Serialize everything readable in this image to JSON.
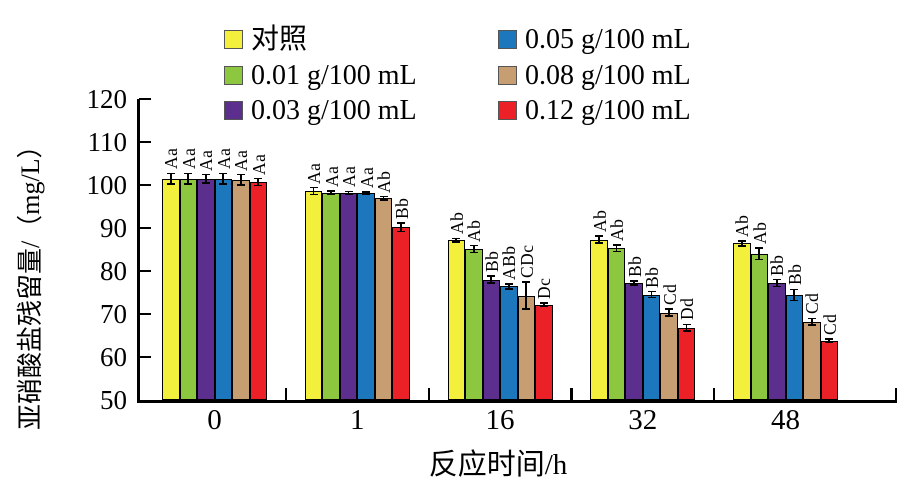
{
  "figure": {
    "background": "#ffffff"
  },
  "chart_data": {
    "type": "bar",
    "title": "",
    "xlabel": "反应时间/h",
    "ylabel": "亚硝酸盐残留量/（mg/L）",
    "categories": [
      "0",
      "1",
      "16",
      "32",
      "48"
    ],
    "y_ticks": [
      50,
      60,
      70,
      80,
      90,
      100,
      110,
      120
    ],
    "ylim": [
      50,
      120
    ],
    "grid": false,
    "legend_position": "top",
    "legend_columns": [
      [
        0,
        1,
        2
      ],
      [
        3,
        4,
        5
      ]
    ],
    "series": [
      {
        "name": "对照",
        "color": "#f3ef3d",
        "values": [
          101.5,
          98.6,
          87.2,
          87.3,
          86.4
        ],
        "errors": [
          1.2,
          0.8,
          0.4,
          0.8,
          0.6
        ],
        "labels": [
          "Aa",
          "Aa",
          "Ab",
          "Ab",
          "Ab"
        ]
      },
      {
        "name": "0.01 g/100 mL",
        "color": "#8dc63f",
        "values": [
          101.5,
          98.2,
          85.1,
          85.3,
          84.0
        ],
        "errors": [
          1.2,
          0.4,
          0.8,
          0.8,
          1.3
        ],
        "labels": [
          "Aa",
          "Aa",
          "Ab",
          "Ab",
          "Ab"
        ]
      },
      {
        "name": "0.03 g/100 mL",
        "color": "#5c2f8f",
        "values": [
          101.4,
          98.2,
          78.0,
          77.2,
          77.2
        ],
        "errors": [
          1.0,
          0.3,
          0.8,
          0.5,
          0.8
        ],
        "labels": [
          "Aa",
          "Aa",
          "Bb",
          "Bb",
          "Bb"
        ]
      },
      {
        "name": "0.05 g/100 mL",
        "color": "#1d77bd",
        "values": [
          101.5,
          98.1,
          76.4,
          74.5,
          74.4
        ],
        "errors": [
          1.2,
          0.3,
          0.6,
          0.7,
          1.3
        ],
        "labels": [
          "Aa",
          "Aa",
          "ABb",
          "Bb",
          "Bb"
        ]
      },
      {
        "name": "0.08 g/100 mL",
        "color": "#c79d72",
        "values": [
          101.2,
          96.9,
          74.3,
          70.3,
          68.2
        ],
        "errors": [
          1.2,
          0.4,
          3.2,
          0.8,
          0.8
        ],
        "labels": [
          "Aa",
          "Ab",
          "CDc",
          "Cd",
          "Cd"
        ]
      },
      {
        "name": "0.12 g/100 mL",
        "color": "#ec2027",
        "values": [
          100.7,
          90.2,
          72.2,
          66.8,
          63.8
        ],
        "errors": [
          0.8,
          1.0,
          0.4,
          0.8,
          0.4
        ],
        "labels": [
          "Aa",
          "Bb",
          "Dc",
          "Dd",
          "Cd"
        ]
      }
    ]
  }
}
